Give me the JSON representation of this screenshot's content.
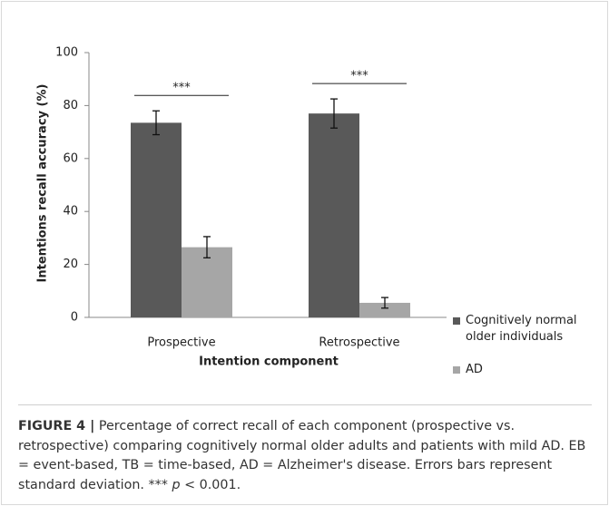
{
  "chart_data": {
    "type": "bar",
    "categories": [
      "Prospective",
      "Retrospective"
    ],
    "x_label": "Intention component",
    "y_label": "Intentions recall accuracy (%)",
    "series": [
      {
        "name": "Cognitively normal older individuals",
        "color": "#595959",
        "values": [
          73.5,
          77
        ],
        "errors": [
          4.5,
          5.5
        ]
      },
      {
        "name": "AD",
        "color": "#a6a6a6",
        "values": [
          26.5,
          5.5
        ],
        "errors": [
          4,
          2
        ]
      }
    ],
    "annotations": [
      "***",
      "***"
    ],
    "ylim": [
      0,
      100
    ],
    "yticks": [
      0,
      20,
      40,
      60,
      80,
      100
    ],
    "grid": false
  },
  "caption": {
    "label": "FIGURE 4 |",
    "text": "Percentage of correct recall of each component (prospective vs. retrospective) comparing cognitively normal older adults and patients with mild AD. EB = event-based, TB = time-based, AD = Alzheimer's disease. Errors bars represent standard deviation. ***",
    "p_symbol": "p",
    "tail": "< 0.001."
  }
}
